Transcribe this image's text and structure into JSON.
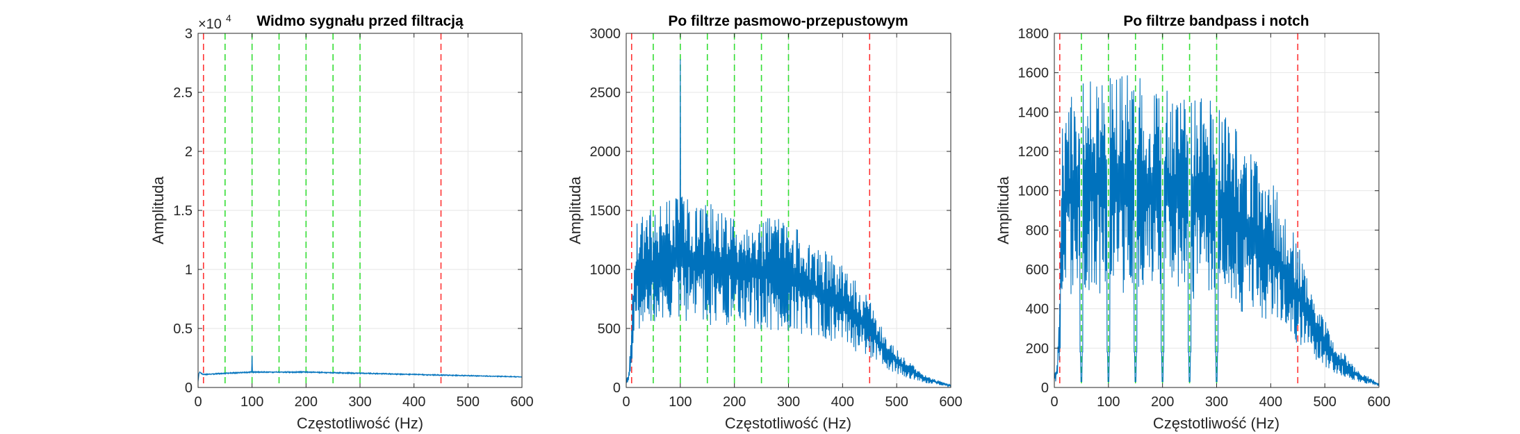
{
  "figure": {
    "background": "#ffffff"
  },
  "chart_data": [
    {
      "type": "line",
      "title": "Widmo sygnału przed filtracją",
      "xlabel": "Częstotliwość (Hz)",
      "ylabel": "Amplituda",
      "xlim": [
        0,
        600
      ],
      "ylim": [
        0,
        3
      ],
      "xticks": [
        0,
        100,
        200,
        300,
        400,
        500,
        600
      ],
      "yticks": [
        0,
        0.5,
        1,
        1.5,
        2,
        2.5,
        3
      ],
      "ytick_labels": [
        "0",
        "0.5",
        "1",
        "1.5",
        "2",
        "2.5",
        "3"
      ],
      "y_exponent_label": "×10",
      "y_exponent": "4",
      "grid": true,
      "line_color": "#0072BD",
      "red_lines": [
        10,
        450
      ],
      "green_lines": [
        50,
        100,
        150,
        200,
        250,
        300
      ],
      "red_color": "#ff3333",
      "green_color": "#33dd33",
      "profile": {
        "x": [
          0,
          2,
          10,
          50,
          100,
          150,
          200,
          250,
          300,
          350,
          400,
          450,
          500,
          600
        ],
        "y": [
          0.05,
          0.13,
          0.11,
          0.12,
          0.13,
          0.13,
          0.13,
          0.125,
          0.12,
          0.115,
          0.11,
          0.105,
          0.1,
          0.09
        ]
      },
      "noise": 0.05,
      "spikes": [
        {
          "x": 100,
          "y": 0.27
        }
      ]
    },
    {
      "type": "line",
      "title": "Po filtrze pasmowo-przepustowym",
      "xlabel": "Częstotliwość (Hz)",
      "ylabel": "Amplituda",
      "xlim": [
        0,
        600
      ],
      "ylim": [
        0,
        3000
      ],
      "xticks": [
        0,
        100,
        200,
        300,
        400,
        500,
        600
      ],
      "yticks": [
        0,
        500,
        1000,
        1500,
        2000,
        2500,
        3000
      ],
      "ytick_labels": [
        "0",
        "500",
        "1000",
        "1500",
        "2000",
        "2500",
        "3000"
      ],
      "grid": true,
      "line_color": "#0072BD",
      "red_lines": [
        10,
        450
      ],
      "green_lines": [
        50,
        100,
        150,
        200,
        250,
        300
      ],
      "red_color": "#ff3333",
      "green_color": "#33dd33",
      "profile": {
        "x": [
          0,
          5,
          10,
          15,
          30,
          100,
          200,
          300,
          400,
          450,
          480,
          520,
          560,
          600
        ],
        "y": [
          50,
          100,
          400,
          900,
          1000,
          1100,
          1000,
          950,
          700,
          500,
          300,
          150,
          60,
          15
        ]
      },
      "noise": 0.55,
      "spikes": [
        {
          "x": 100,
          "y": 2780
        }
      ]
    },
    {
      "type": "line",
      "title": "Po filtrze bandpass i notch",
      "xlabel": "Częstotliwość (Hz)",
      "ylabel": "Amplituda",
      "xlim": [
        0,
        600
      ],
      "ylim": [
        0,
        1800
      ],
      "xticks": [
        0,
        100,
        200,
        300,
        400,
        500,
        600
      ],
      "yticks": [
        0,
        200,
        400,
        600,
        800,
        1000,
        1200,
        1400,
        1600,
        1800
      ],
      "ytick_labels": [
        "0",
        "200",
        "400",
        "600",
        "800",
        "1000",
        "1200",
        "1400",
        "1600",
        "1800"
      ],
      "grid": true,
      "line_color": "#0072BD",
      "red_lines": [
        10,
        450
      ],
      "green_lines": [
        50,
        100,
        150,
        200,
        250,
        300
      ],
      "red_color": "#ff3333",
      "green_color": "#33dd33",
      "profile": {
        "x": [
          0,
          5,
          10,
          15,
          30,
          100,
          200,
          300,
          400,
          450,
          480,
          520,
          560,
          600
        ],
        "y": [
          50,
          80,
          300,
          900,
          1000,
          1050,
          1000,
          950,
          700,
          480,
          300,
          150,
          60,
          15
        ]
      },
      "noise": 0.6,
      "notches": [
        50,
        100,
        150,
        200,
        250,
        300
      ],
      "notch_depth": 30,
      "spikes": []
    }
  ]
}
